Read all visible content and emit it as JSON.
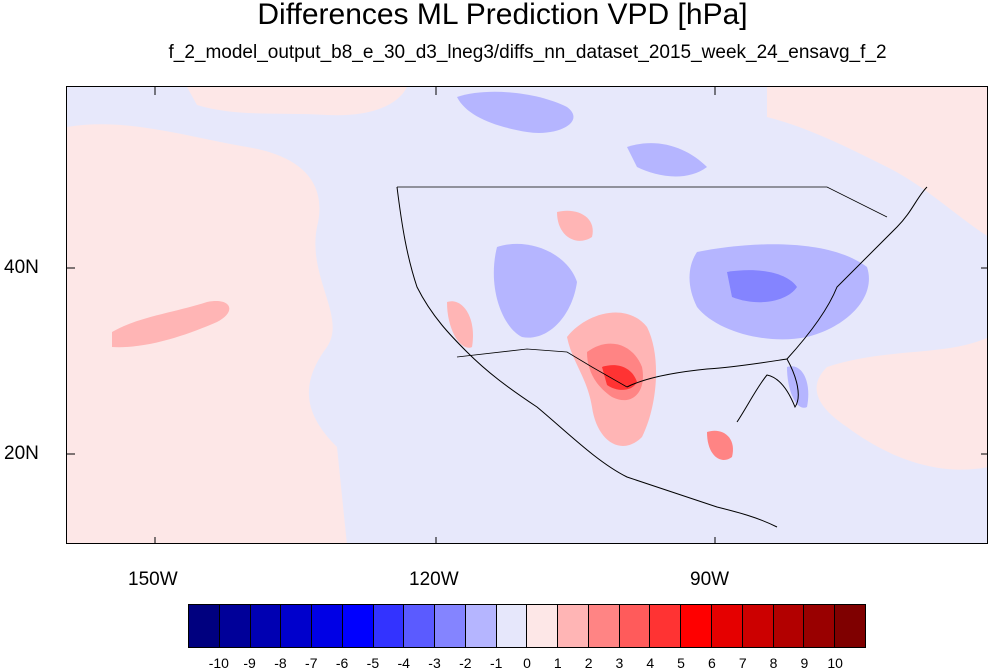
{
  "title": "Differences ML Prediction VPD [hPa]",
  "subtitle": "f_2_model_output_b8_e_30_d3_lneg3/diffs_nn_dataset_2015_week_24_ensavg_f_2",
  "map": {
    "longitude_labels": [
      "150W",
      "120W",
      "90W"
    ],
    "latitude_labels": [
      "40N",
      "20N"
    ]
  },
  "colorbar": {
    "labels": [
      "-10",
      "-9",
      "-8",
      "-7",
      "-6",
      "-5",
      "-4",
      "-3",
      "-2",
      "-1",
      "0",
      "1",
      "2",
      "3",
      "4",
      "5",
      "6",
      "7",
      "8",
      "9",
      "10"
    ],
    "colors": [
      "#00007f",
      "#000099",
      "#0000b2",
      "#0000cc",
      "#0000e5",
      "#0000ff",
      "#3333ff",
      "#5b5bff",
      "#8484ff",
      "#b5b5ff",
      "#e6e7fb",
      "#fde7e7",
      "#ffb5b5",
      "#ff8484",
      "#ff5b5b",
      "#ff3333",
      "#ff0000",
      "#e50000",
      "#cc0000",
      "#b20000",
      "#990000",
      "#7f0000"
    ]
  }
}
